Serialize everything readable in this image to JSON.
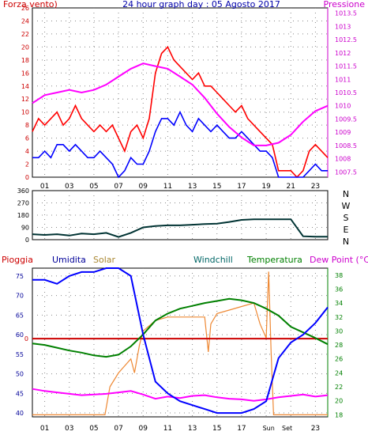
{
  "chart_data": [
    {
      "type": "line",
      "title": "24 hour graph day : 05 Agosto 2017",
      "left_label": "Forza vento)",
      "right_label": "Pressione",
      "x_ticks": [
        "01",
        "03",
        "05",
        "07",
        "09",
        "11",
        "13",
        "15",
        "17",
        "19",
        "21",
        "23"
      ],
      "x_range": [
        0,
        24
      ],
      "ylim_left": [
        0,
        26
      ],
      "yticks_left": [
        "0",
        "2",
        "4",
        "6",
        "8",
        "10",
        "12",
        "14",
        "16",
        "18",
        "20",
        "22",
        "24",
        "26"
      ],
      "ylim_right": [
        1007.3,
        1013.7
      ],
      "yticks_right": [
        "1007.5",
        "1008",
        "1008.5",
        "1009",
        "1009.5",
        "1010",
        "1010.5",
        "1011",
        "1011.5",
        "1012",
        "1012.5",
        "1013",
        "1013.5"
      ],
      "grid": true,
      "colors": {
        "gust": "#ff0000",
        "wind": "#0000ff",
        "pressure": "#ff00ff",
        "left_axis": "#cc0000",
        "right_axis": "#cc00cc",
        "title": "#0000aa"
      },
      "series": [
        {
          "axis": "left",
          "color": "#ff0000",
          "x": [
            0,
            0.5,
            1,
            1.5,
            2,
            2.5,
            3,
            3.5,
            4,
            4.5,
            5,
            5.5,
            6,
            6.5,
            7,
            7.5,
            8,
            8.5,
            9,
            9.5,
            10,
            10.5,
            11,
            11.5,
            12,
            12.5,
            13,
            13.5,
            14,
            14.5,
            15,
            15.5,
            16,
            16.5,
            17,
            17.5,
            18,
            18.5,
            19,
            19.5,
            20,
            20.5,
            21,
            21.5,
            22,
            22.5,
            23,
            23.5,
            24
          ],
          "values": [
            7,
            9,
            8,
            9,
            10,
            8,
            9,
            11,
            9,
            8,
            7,
            8,
            7,
            8,
            6,
            4,
            7,
            8,
            6,
            9,
            16,
            19,
            20,
            18,
            17,
            16,
            15,
            16,
            14,
            14,
            13,
            12,
            11,
            10,
            11,
            9,
            8,
            7,
            6,
            5,
            1,
            1,
            1,
            0,
            1,
            4,
            5,
            4,
            3
          ]
        },
        {
          "axis": "left",
          "color": "#0000ff",
          "x": [
            0,
            0.5,
            1,
            1.5,
            2,
            2.5,
            3,
            3.5,
            4,
            4.5,
            5,
            5.5,
            6,
            6.5,
            7,
            7.5,
            8,
            8.5,
            9,
            9.5,
            10,
            10.5,
            11,
            11.5,
            12,
            12.5,
            13,
            13.5,
            14,
            14.5,
            15,
            15.5,
            16,
            16.5,
            17,
            17.5,
            18,
            18.5,
            19,
            19.5,
            20,
            20.5,
            21,
            21.5,
            22,
            22.5,
            23,
            23.5,
            24
          ],
          "values": [
            3,
            3,
            4,
            3,
            5,
            5,
            4,
            5,
            4,
            3,
            3,
            4,
            3,
            2,
            0,
            1,
            3,
            2,
            2,
            4,
            7,
            9,
            9,
            8,
            10,
            8,
            7,
            9,
            8,
            7,
            8,
            7,
            6,
            6,
            7,
            6,
            5,
            4,
            4,
            3,
            0,
            0,
            0,
            0,
            0,
            1,
            2,
            1,
            1
          ]
        },
        {
          "axis": "right",
          "color": "#ff00ff",
          "x": [
            0,
            1,
            2,
            3,
            4,
            5,
            6,
            7,
            8,
            9,
            10,
            11,
            12,
            13,
            14,
            15,
            16,
            17,
            18,
            19,
            20,
            21,
            22,
            23,
            24
          ],
          "values": [
            1010.1,
            1010.4,
            1010.5,
            1010.6,
            1010.5,
            1010.6,
            1010.8,
            1011.1,
            1011.4,
            1011.6,
            1011.5,
            1011.4,
            1011.1,
            1010.8,
            1010.3,
            1009.7,
            1009.2,
            1008.8,
            1008.5,
            1008.5,
            1008.6,
            1008.9,
            1009.4,
            1009.8,
            1010.0
          ]
        }
      ]
    },
    {
      "type": "line",
      "x_range": [
        0,
        24
      ],
      "ylim": [
        0,
        360
      ],
      "yticks": [
        "0",
        "90",
        "180",
        "270",
        "360"
      ],
      "compass": [
        "N",
        "W",
        "S",
        "E",
        "N"
      ],
      "grid": true,
      "series": [
        {
          "color": "#003333",
          "x": [
            0,
            1,
            2,
            3,
            4,
            5,
            6,
            7,
            8,
            9,
            10,
            11,
            12,
            13,
            14,
            15,
            16,
            17,
            18,
            19,
            20,
            20.5,
            21,
            22,
            23,
            24
          ],
          "values": [
            40,
            35,
            40,
            30,
            45,
            40,
            50,
            20,
            50,
            90,
            100,
            105,
            105,
            110,
            115,
            118,
            130,
            145,
            150,
            150,
            150,
            150,
            150,
            25,
            22,
            22
          ]
        }
      ]
    },
    {
      "type": "line",
      "labels": [
        "Pioggia",
        "Umidita",
        "Solar",
        "Windchill",
        "Temperatura",
        "Dew Point (°C)"
      ],
      "x_ticks": [
        "01",
        "03",
        "05",
        "07",
        "09",
        "11",
        "13",
        "15",
        "17",
        "19",
        "21",
        "23"
      ],
      "x_annotations": [
        "Sun",
        "Set"
      ],
      "x_range": [
        0,
        24
      ],
      "ylim_left": [
        39,
        77
      ],
      "yticks_left": [
        "40",
        "45",
        "50",
        "55",
        "60",
        "65",
        "70",
        "75"
      ],
      "ylim_right": [
        17.7,
        39
      ],
      "yticks_right": [
        "18",
        "20",
        "22",
        "24",
        "26",
        "28",
        "30",
        "32",
        "34",
        "36",
        "38"
      ],
      "rain_value_label": "0",
      "grid": true,
      "series": [
        {
          "name": "Umidita",
          "axis": "left",
          "color": "#0000ff",
          "x": [
            0,
            1,
            2,
            3,
            4,
            5,
            6,
            7,
            8,
            9,
            10,
            11,
            12,
            13,
            14,
            15,
            16,
            17,
            18,
            19,
            20,
            21,
            22,
            23,
            24
          ],
          "values": [
            74,
            74,
            73,
            75,
            76,
            76,
            77,
            77,
            75,
            60,
            48,
            45,
            43,
            42,
            41,
            40,
            40,
            40,
            41,
            43,
            54,
            58,
            60,
            63,
            67
          ]
        },
        {
          "name": "Temperatura",
          "axis": "right",
          "color": "#008000",
          "x": [
            0,
            1,
            2,
            3,
            4,
            5,
            6,
            7,
            8,
            9,
            10,
            11,
            12,
            13,
            14,
            15,
            16,
            17,
            18,
            19,
            20,
            21,
            22,
            23,
            24
          ],
          "values": [
            28.2,
            28,
            27.6,
            27.2,
            26.9,
            26.5,
            26.3,
            26.6,
            27.8,
            29.5,
            31.5,
            32.5,
            33.2,
            33.6,
            34.0,
            34.3,
            34.6,
            34.4,
            34.0,
            33.2,
            32.2,
            30.6,
            29.8,
            29.0,
            28.1
          ]
        },
        {
          "name": "Dew Point (°C)",
          "axis": "right",
          "color": "#ff00ff",
          "x": [
            0,
            1,
            2,
            3,
            4,
            5,
            6,
            7,
            8,
            9,
            10,
            11,
            12,
            13,
            14,
            15,
            16,
            17,
            18,
            19,
            20,
            21,
            22,
            23,
            24
          ],
          "values": [
            21.7,
            21.4,
            21.2,
            21.0,
            20.8,
            20.9,
            21.0,
            21.2,
            21.4,
            20.9,
            20.3,
            20.6,
            20.4,
            20.7,
            20.8,
            20.5,
            20.3,
            20.2,
            20.0,
            20.2,
            20.5,
            20.7,
            20.9,
            20.6,
            20.8
          ]
        },
        {
          "name": "Solar",
          "axis": "right",
          "color": "#ee8833",
          "x": [
            0,
            5.9,
            6.3,
            7,
            8,
            8.3,
            8.7,
            9,
            10,
            11,
            12,
            13,
            14,
            14.3,
            14.5,
            15,
            16,
            17,
            18,
            18.5,
            19,
            19.2,
            19.4,
            19.6,
            20,
            24
          ],
          "values": [
            18,
            18,
            22,
            24,
            26,
            24,
            28,
            30,
            31.5,
            32,
            32,
            32,
            32,
            27,
            31,
            32.5,
            33,
            33.5,
            34,
            31,
            29,
            38.5,
            27,
            18,
            18,
            18
          ]
        },
        {
          "name": "Pioggia",
          "axis": "left",
          "color": "#cc0000",
          "x": [
            0,
            24
          ],
          "values": [
            59,
            59
          ]
        }
      ]
    }
  ]
}
